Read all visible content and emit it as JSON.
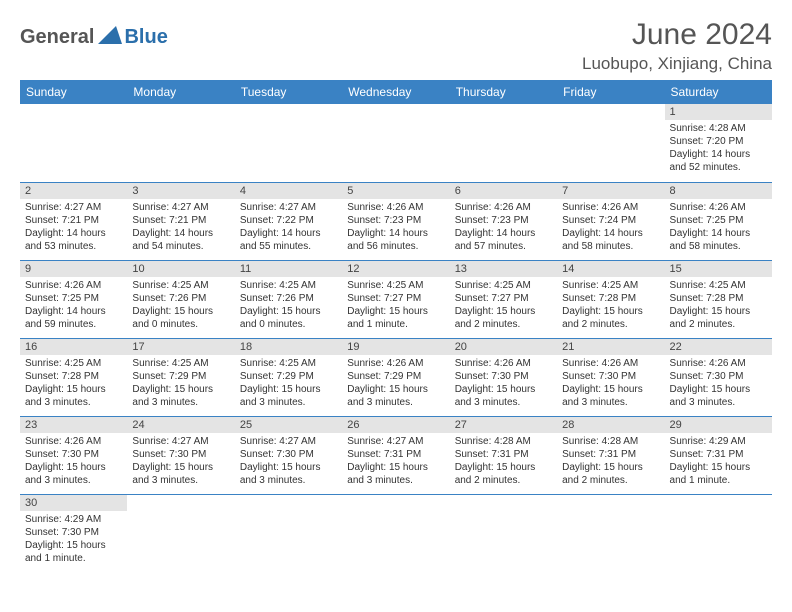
{
  "logo": {
    "part1": "General",
    "part2": "Blue",
    "shape_color": "#2b6fab"
  },
  "title": "June 2024",
  "location": "Luobupo, Xinjiang, China",
  "colors": {
    "header_bg": "#3a82c4",
    "header_text": "#ffffff",
    "daynum_bg": "#e4e4e4",
    "border": "#3a82c4",
    "text": "#333333"
  },
  "weekdays": [
    "Sunday",
    "Monday",
    "Tuesday",
    "Wednesday",
    "Thursday",
    "Friday",
    "Saturday"
  ],
  "weeks": [
    [
      null,
      null,
      null,
      null,
      null,
      null,
      {
        "n": "1",
        "sr": "4:28 AM",
        "ss": "7:20 PM",
        "dl": "14 hours and 52 minutes."
      }
    ],
    [
      {
        "n": "2",
        "sr": "4:27 AM",
        "ss": "7:21 PM",
        "dl": "14 hours and 53 minutes."
      },
      {
        "n": "3",
        "sr": "4:27 AM",
        "ss": "7:21 PM",
        "dl": "14 hours and 54 minutes."
      },
      {
        "n": "4",
        "sr": "4:27 AM",
        "ss": "7:22 PM",
        "dl": "14 hours and 55 minutes."
      },
      {
        "n": "5",
        "sr": "4:26 AM",
        "ss": "7:23 PM",
        "dl": "14 hours and 56 minutes."
      },
      {
        "n": "6",
        "sr": "4:26 AM",
        "ss": "7:23 PM",
        "dl": "14 hours and 57 minutes."
      },
      {
        "n": "7",
        "sr": "4:26 AM",
        "ss": "7:24 PM",
        "dl": "14 hours and 58 minutes."
      },
      {
        "n": "8",
        "sr": "4:26 AM",
        "ss": "7:25 PM",
        "dl": "14 hours and 58 minutes."
      }
    ],
    [
      {
        "n": "9",
        "sr": "4:26 AM",
        "ss": "7:25 PM",
        "dl": "14 hours and 59 minutes."
      },
      {
        "n": "10",
        "sr": "4:25 AM",
        "ss": "7:26 PM",
        "dl": "15 hours and 0 minutes."
      },
      {
        "n": "11",
        "sr": "4:25 AM",
        "ss": "7:26 PM",
        "dl": "15 hours and 0 minutes."
      },
      {
        "n": "12",
        "sr": "4:25 AM",
        "ss": "7:27 PM",
        "dl": "15 hours and 1 minute."
      },
      {
        "n": "13",
        "sr": "4:25 AM",
        "ss": "7:27 PM",
        "dl": "15 hours and 2 minutes."
      },
      {
        "n": "14",
        "sr": "4:25 AM",
        "ss": "7:28 PM",
        "dl": "15 hours and 2 minutes."
      },
      {
        "n": "15",
        "sr": "4:25 AM",
        "ss": "7:28 PM",
        "dl": "15 hours and 2 minutes."
      }
    ],
    [
      {
        "n": "16",
        "sr": "4:25 AM",
        "ss": "7:28 PM",
        "dl": "15 hours and 3 minutes."
      },
      {
        "n": "17",
        "sr": "4:25 AM",
        "ss": "7:29 PM",
        "dl": "15 hours and 3 minutes."
      },
      {
        "n": "18",
        "sr": "4:25 AM",
        "ss": "7:29 PM",
        "dl": "15 hours and 3 minutes."
      },
      {
        "n": "19",
        "sr": "4:26 AM",
        "ss": "7:29 PM",
        "dl": "15 hours and 3 minutes."
      },
      {
        "n": "20",
        "sr": "4:26 AM",
        "ss": "7:30 PM",
        "dl": "15 hours and 3 minutes."
      },
      {
        "n": "21",
        "sr": "4:26 AM",
        "ss": "7:30 PM",
        "dl": "15 hours and 3 minutes."
      },
      {
        "n": "22",
        "sr": "4:26 AM",
        "ss": "7:30 PM",
        "dl": "15 hours and 3 minutes."
      }
    ],
    [
      {
        "n": "23",
        "sr": "4:26 AM",
        "ss": "7:30 PM",
        "dl": "15 hours and 3 minutes."
      },
      {
        "n": "24",
        "sr": "4:27 AM",
        "ss": "7:30 PM",
        "dl": "15 hours and 3 minutes."
      },
      {
        "n": "25",
        "sr": "4:27 AM",
        "ss": "7:30 PM",
        "dl": "15 hours and 3 minutes."
      },
      {
        "n": "26",
        "sr": "4:27 AM",
        "ss": "7:31 PM",
        "dl": "15 hours and 3 minutes."
      },
      {
        "n": "27",
        "sr": "4:28 AM",
        "ss": "7:31 PM",
        "dl": "15 hours and 2 minutes."
      },
      {
        "n": "28",
        "sr": "4:28 AM",
        "ss": "7:31 PM",
        "dl": "15 hours and 2 minutes."
      },
      {
        "n": "29",
        "sr": "4:29 AM",
        "ss": "7:31 PM",
        "dl": "15 hours and 1 minute."
      }
    ],
    [
      {
        "n": "30",
        "sr": "4:29 AM",
        "ss": "7:30 PM",
        "dl": "15 hours and 1 minute."
      },
      null,
      null,
      null,
      null,
      null,
      null
    ]
  ],
  "labels": {
    "sunrise": "Sunrise: ",
    "sunset": "Sunset: ",
    "daylight": "Daylight: "
  }
}
